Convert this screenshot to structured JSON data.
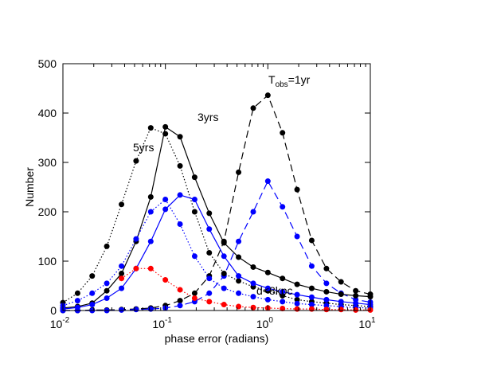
{
  "chart_data": {
    "type": "line",
    "x_label": "phase error (radians)",
    "y_label": "Number",
    "xlog": true,
    "xlim": [
      0.01,
      10
    ],
    "ylim": [
      0,
      500
    ],
    "xticks": [
      {
        "value": 0.01,
        "label": "10",
        "exponent": "-2"
      },
      {
        "value": 0.1,
        "label": "10",
        "exponent": "-1"
      },
      {
        "value": 1,
        "label": "10",
        "exponent": "0"
      },
      {
        "value": 10,
        "label": "10",
        "exponent": "1"
      }
    ],
    "yticks": [
      0,
      100,
      200,
      300,
      400,
      500
    ],
    "annotations": {
      "five": "5yrs",
      "three": "3yrs",
      "one_base": "T",
      "one_sub": "obs",
      "one_rest": "=1yr",
      "near": "d<8kpc"
    },
    "x": [
      0.01,
      0.0139,
      0.0193,
      0.0268,
      0.0373,
      0.0518,
      0.072,
      0.1,
      0.139,
      0.193,
      0.268,
      0.373,
      0.518,
      0.72,
      1,
      1.39,
      1.93,
      2.68,
      3.73,
      5.18,
      7.2,
      10
    ],
    "series": [
      {
        "color": "#000000",
        "dash": "dashed",
        "values": [
          0,
          0,
          1,
          1,
          2,
          3,
          5,
          10,
          20,
          35,
          70,
          140,
          280,
          410,
          436,
          360,
          245,
          142,
          85,
          58,
          40,
          33
        ]
      },
      {
        "color": "#0000ff",
        "dash": "dashed",
        "values": [
          0,
          0,
          0,
          0,
          1,
          2,
          3,
          5,
          10,
          18,
          35,
          70,
          140,
          200,
          262,
          210,
          150,
          90,
          55,
          35,
          22,
          17
        ]
      },
      {
        "color": "#000000",
        "dash": "solid",
        "values": [
          5,
          8,
          15,
          40,
          75,
          140,
          230,
          372,
          352,
          270,
          197,
          137,
          108,
          88,
          77,
          65,
          53,
          45,
          38,
          33,
          30,
          28
        ]
      },
      {
        "color": "#000000",
        "dash": "dotted",
        "values": [
          16,
          35,
          70,
          130,
          215,
          303,
          370,
          358,
          293,
          200,
          117,
          75,
          60,
          48,
          40,
          30,
          22,
          18,
          15,
          12,
          10,
          8
        ]
      },
      {
        "color": "#0000ff",
        "dash": "solid",
        "values": [
          3,
          6,
          12,
          25,
          45,
          85,
          140,
          205,
          234,
          225,
          165,
          110,
          70,
          55,
          45,
          38,
          32,
          27,
          22,
          18,
          15,
          12
        ]
      },
      {
        "color": "#0000ff",
        "dash": "dotted",
        "values": [
          10,
          20,
          35,
          55,
          90,
          145,
          200,
          225,
          175,
          110,
          65,
          45,
          35,
          28,
          22,
          18,
          14,
          12,
          10,
          8,
          6,
          5
        ]
      },
      {
        "color": "#ff0000",
        "dash": "dotted",
        "values": [
          null,
          null,
          null,
          null,
          65,
          85,
          85,
          62,
          42,
          25,
          18,
          12,
          8,
          6,
          5,
          4,
          3,
          3,
          2,
          2,
          1,
          1
        ]
      }
    ]
  }
}
